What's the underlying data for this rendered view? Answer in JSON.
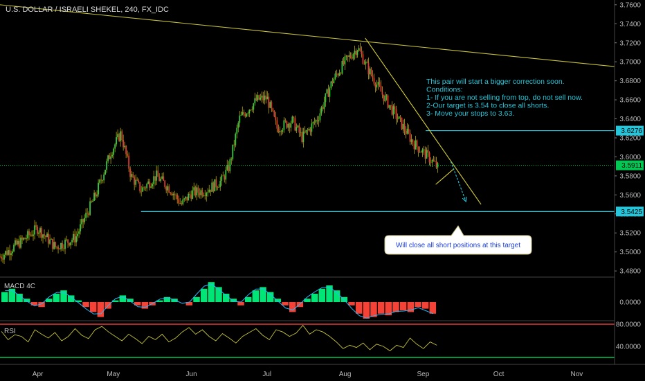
{
  "chart_data": {
    "type": "candlestick",
    "title": "U.S. DOLLAR / ISRAELI SHEKEL, 240, FX_IDC",
    "price_axis": {
      "ylim": [
        3.475,
        3.765
      ],
      "ticks": [
        "3.7600",
        "3.7400",
        "3.7200",
        "3.7000",
        "3.6800",
        "3.6600",
        "3.6400",
        "3.6200",
        "3.6000",
        "3.5800",
        "3.5600",
        "3.5400",
        "3.5200",
        "3.5000",
        "3.4800"
      ]
    },
    "x_axis": {
      "labels": [
        "Apr",
        "May",
        "Jun",
        "Jul",
        "Aug",
        "Sep",
        "Oct",
        "Nov"
      ],
      "day_range": [
        0,
        244
      ],
      "label_days": [
        15,
        45,
        76,
        106,
        137,
        168,
        198,
        229
      ]
    },
    "price_path": [
      [
        0,
        3.495
      ],
      [
        8,
        3.51
      ],
      [
        15,
        3.525
      ],
      [
        22,
        3.505
      ],
      [
        30,
        3.515
      ],
      [
        38,
        3.56
      ],
      [
        44,
        3.605
      ],
      [
        48,
        3.625
      ],
      [
        52,
        3.58
      ],
      [
        56,
        3.565
      ],
      [
        62,
        3.58
      ],
      [
        68,
        3.565
      ],
      [
        72,
        3.55
      ],
      [
        76,
        3.562
      ],
      [
        82,
        3.565
      ],
      [
        88,
        3.575
      ],
      [
        91,
        3.59
      ],
      [
        95,
        3.64
      ],
      [
        102,
        3.66
      ],
      [
        106,
        3.662
      ],
      [
        110,
        3.63
      ],
      [
        116,
        3.638
      ],
      [
        120,
        3.62
      ],
      [
        126,
        3.64
      ],
      [
        132,
        3.68
      ],
      [
        137,
        3.7
      ],
      [
        142,
        3.715
      ],
      [
        146,
        3.693
      ],
      [
        152,
        3.665
      ],
      [
        158,
        3.64
      ],
      [
        164,
        3.615
      ],
      [
        170,
        3.6
      ],
      [
        174,
        3.588
      ]
    ],
    "current_price": {
      "value": 3.5911,
      "label": "3.5911",
      "color": "#00c853"
    },
    "levels": [
      {
        "label": "3.6276",
        "value": 3.6276,
        "day_from": 169,
        "color": "#26c6da"
      },
      {
        "label": "3.5425",
        "value": 3.5425,
        "day_from": 56,
        "color": "#26c6da"
      }
    ],
    "trendlines": [
      {
        "name": "long-resistance",
        "color": "#c6c33a",
        "points": [
          [
            0,
            3.76
          ],
          [
            244,
            3.695
          ]
        ]
      },
      {
        "name": "short-resistance",
        "color": "#d4cf3a",
        "points": [
          [
            145,
            3.725
          ],
          [
            191,
            3.55
          ]
        ]
      },
      {
        "name": "channel-low",
        "color": "#d4cf3a",
        "points": [
          [
            173,
            3.571
          ],
          [
            180,
            3.587
          ]
        ]
      }
    ],
    "projection_arrow": {
      "color": "#26c6da",
      "points": [
        [
          179,
          3.595
        ],
        [
          185,
          3.553
        ]
      ]
    },
    "annotations": {
      "main_note": [
        "This pair will start a bigger correction soon.",
        "Conditions:",
        "1- If you are not selling from top, do not sell now.",
        "2-Our target is 3.54 to close all shorts.",
        "3- Move your stops to 3.63."
      ],
      "main_note_color": "#26c6da",
      "callout": "Will close all short positions at this target",
      "callout_color": "#1a3de0"
    },
    "macd_panel": {
      "label": "MACD 4C",
      "tick": "0.0000",
      "colors": {
        "positive": "#00e676",
        "negative": "#f44336",
        "line": "#29b6f6"
      },
      "values": [
        0.6,
        0.8,
        0.5,
        0.2,
        -0.2,
        -0.3,
        0.2,
        0.5,
        0.7,
        0.4,
        0.1,
        -0.3,
        -0.6,
        -0.9,
        -0.4,
        0.1,
        0.4,
        0.2,
        -0.2,
        -0.4,
        -0.2,
        0.1,
        0.3,
        0.2,
        0.0,
        -0.2,
        0.3,
        0.8,
        1.2,
        0.9,
        0.5,
        0.2,
        -0.2,
        0.3,
        0.7,
        0.9,
        0.6,
        0.2,
        -0.2,
        -0.6,
        -0.3,
        0.2,
        0.5,
        0.8,
        1.0,
        0.7,
        0.3,
        -0.2,
        -0.7,
        -1.0,
        -0.9,
        -0.7,
        -0.8,
        -0.6,
        -0.5,
        -0.6,
        -0.3,
        -0.4,
        -0.7
      ]
    },
    "rsi_panel": {
      "label": "RSI",
      "ticks": [
        "80.0000",
        "40.0000"
      ],
      "levels": [
        80,
        20
      ],
      "level_colors": [
        "#e53935",
        "#00c853"
      ],
      "line_color": "#c6c33a",
      "values": [
        67,
        52,
        61,
        58,
        48,
        70,
        62,
        55,
        65,
        50,
        58,
        72,
        60,
        54,
        70,
        76,
        66,
        58,
        50,
        62,
        54,
        45,
        58,
        52,
        62,
        48,
        55,
        66,
        74,
        62,
        70,
        58,
        50,
        63,
        55,
        46,
        58,
        65,
        72,
        60,
        52,
        70,
        66,
        58,
        64,
        78,
        62,
        70,
        66,
        58,
        48,
        36,
        42,
        38,
        46,
        34,
        44,
        40,
        32,
        42,
        38,
        55,
        44,
        36,
        48,
        42
      ]
    }
  }
}
